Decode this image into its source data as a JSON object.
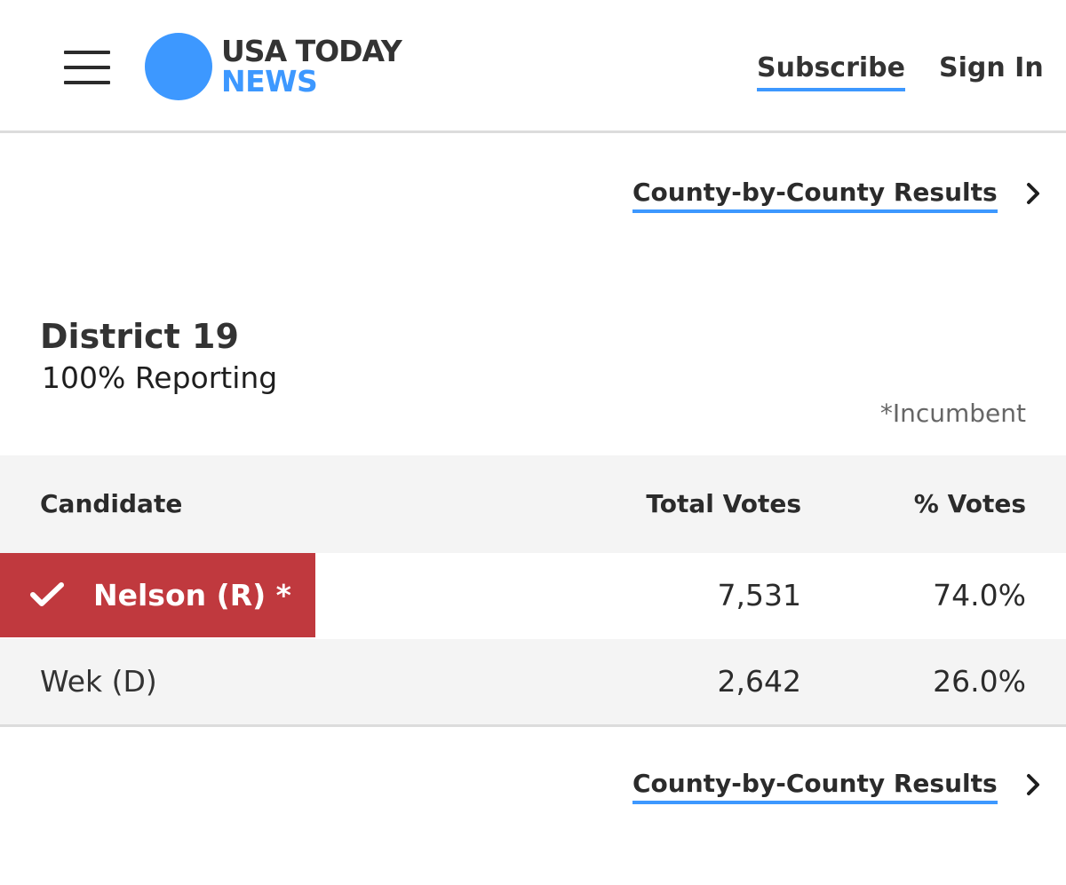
{
  "header": {
    "logo": {
      "line1": "USA TODAY",
      "line2": "NEWS"
    },
    "subscribe_label": "Subscribe",
    "signin_label": "Sign In"
  },
  "links": {
    "county_results_label": "County-by-County Results"
  },
  "race": {
    "title": "District 19",
    "reporting": "100% Reporting",
    "incumbent_note": "*Incumbent"
  },
  "table": {
    "columns": {
      "candidate": "Candidate",
      "total_votes": "Total Votes",
      "pct_votes": "% Votes"
    },
    "rows": [
      {
        "candidate": "Nelson (R) *",
        "total_votes": "7,531",
        "pct_votes": "74.0%",
        "winner": true
      },
      {
        "candidate": "Wek (D)",
        "total_votes": "2,642",
        "pct_votes": "26.0%",
        "winner": false
      }
    ]
  },
  "colors": {
    "accent_blue": "#3d98ff",
    "winner_red": "#c0393e",
    "header_gray": "#f4f4f4",
    "text_dark": "#2b2b2b"
  },
  "icons": {
    "menu": "hamburger-menu-icon",
    "logo": "usa-today-dot-logo",
    "chevron": "chevron-right-icon",
    "winner": "checkmark-icon"
  }
}
